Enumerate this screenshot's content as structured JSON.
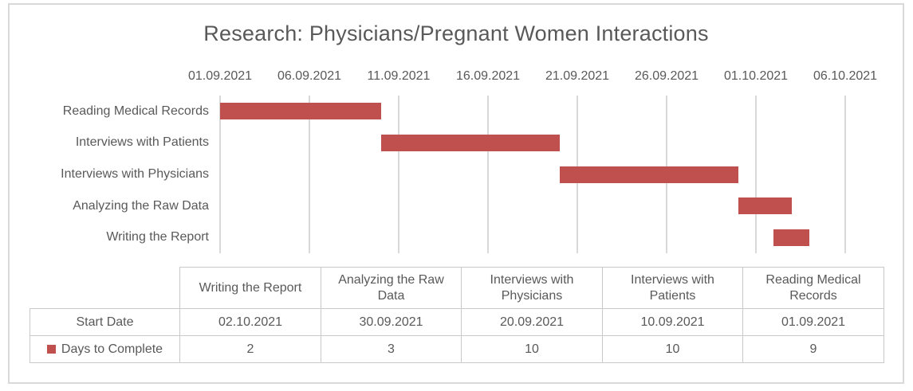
{
  "title": "Research: Physicians/Pregnant Women Interactions",
  "colors": {
    "bar": "#C0504D",
    "text": "#595959",
    "gridline": "#D9D9D9",
    "table_border": "#C9C9C9",
    "chart_border": "#D9D9D9"
  },
  "chart_data": {
    "type": "bar",
    "subtype": "gantt-horizontal",
    "title": "Research: Physicians/Pregnant Women Interactions",
    "categories": [
      "Reading Medical Records",
      "Interviews with Patients",
      "Interviews with Physicians",
      "Analyzing the Raw Data",
      "Writing the Report"
    ],
    "series": [
      {
        "name": "Start Date",
        "values": [
          "01.09.2021",
          "10.09.2021",
          "20.09.2021",
          "30.09.2021",
          "02.10.2021"
        ],
        "rendered_invisible": true
      },
      {
        "name": "Days to Complete",
        "values": [
          9,
          10,
          10,
          3,
          2
        ],
        "color": "#C0504D"
      }
    ],
    "bar_start_offset_days": [
      0,
      9,
      19,
      29,
      31
    ],
    "x_axis": {
      "position": "top",
      "tick_labels": [
        "01.09.2021",
        "06.09.2021",
        "11.09.2021",
        "16.09.2021",
        "21.09.2021",
        "26.09.2021",
        "01.10.2021",
        "06.10.2021"
      ],
      "range_days": [
        0,
        35
      ],
      "tick_interval_days": 5,
      "gridlines": "vertical"
    },
    "legend_position": "data-table-row-key"
  },
  "data_table": {
    "corner_cell": "",
    "columns": [
      "Writing the Report",
      "Analyzing the Raw Data",
      "Interviews with Physicians",
      "Interviews with Patients",
      "Reading Medical Records"
    ],
    "rows": [
      {
        "label": "Start Date",
        "legend_key": false,
        "values": [
          "02.10.2021",
          "30.09.2021",
          "20.09.2021",
          "10.09.2021",
          "01.09.2021"
        ]
      },
      {
        "label": "Days to Complete",
        "legend_key": true,
        "values": [
          "2",
          "3",
          "10",
          "10",
          "9"
        ]
      }
    ]
  }
}
